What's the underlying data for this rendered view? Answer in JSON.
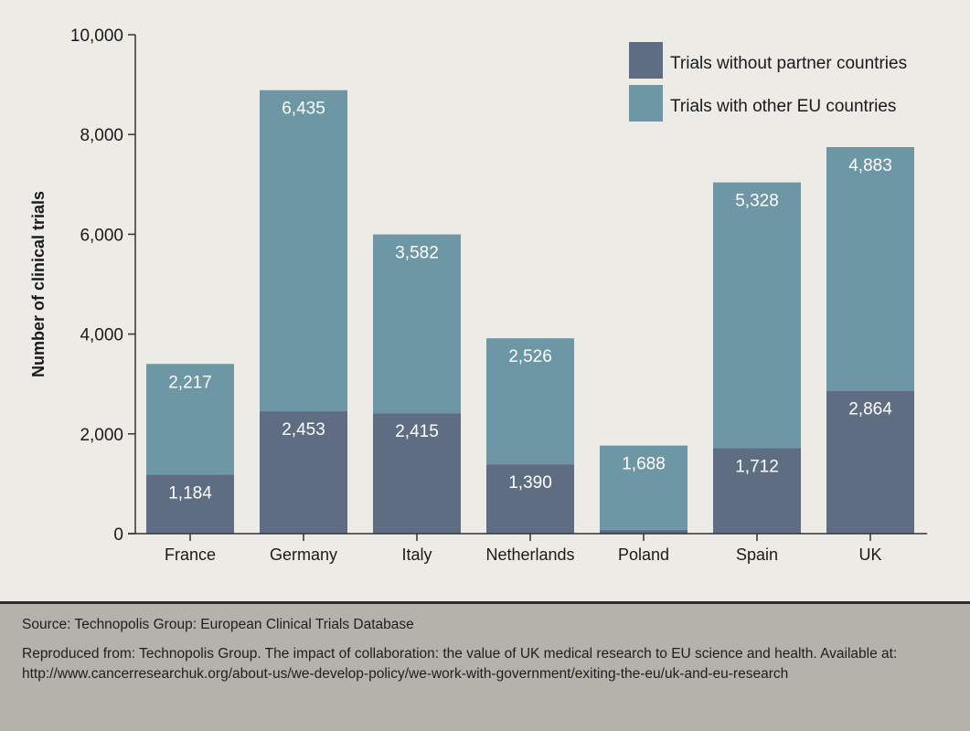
{
  "chart_data": {
    "type": "bar",
    "stacked": true,
    "title": "",
    "xlabel": "",
    "ylabel": "Number of clinical trials",
    "ylim": [
      0,
      10000
    ],
    "yticks": [
      0,
      2000,
      4000,
      6000,
      8000,
      10000
    ],
    "ytick_labels": [
      "0",
      "2,000",
      "4,000",
      "6,000",
      "8,000",
      "10,000"
    ],
    "grid": false,
    "legend_position": "top-right",
    "categories": [
      "France",
      "Germany",
      "Italy",
      "Netherlands",
      "Poland",
      "Spain",
      "UK"
    ],
    "series": [
      {
        "name": "Trials without partner countries",
        "color": "#5f6d83",
        "values": [
          1184,
          2453,
          2415,
          1390,
          77,
          1712,
          2864
        ],
        "labels": [
          "1,184",
          "2,453",
          "2,415",
          "1,390",
          "77",
          "1,712",
          "2,864"
        ]
      },
      {
        "name": "Trials with other EU countries",
        "color": "#6d97a4",
        "values": [
          2217,
          6435,
          3582,
          2526,
          1688,
          5328,
          4883
        ],
        "labels": [
          "2,217",
          "6,435",
          "3,582",
          "2,526",
          "1,688",
          "5,328",
          "4,883"
        ]
      }
    ]
  },
  "footer": {
    "source": "Source: Technopolis Group: European Clinical Trials Database",
    "reference": "Reproduced from: Technopolis Group. The impact of collaboration: the value of UK medical research to EU science and health. Available at: http://www.cancerresearchuk.org/about-us/we-develop-policy/we-work-with-government/exiting-the-eu/uk-and-eu-research"
  }
}
